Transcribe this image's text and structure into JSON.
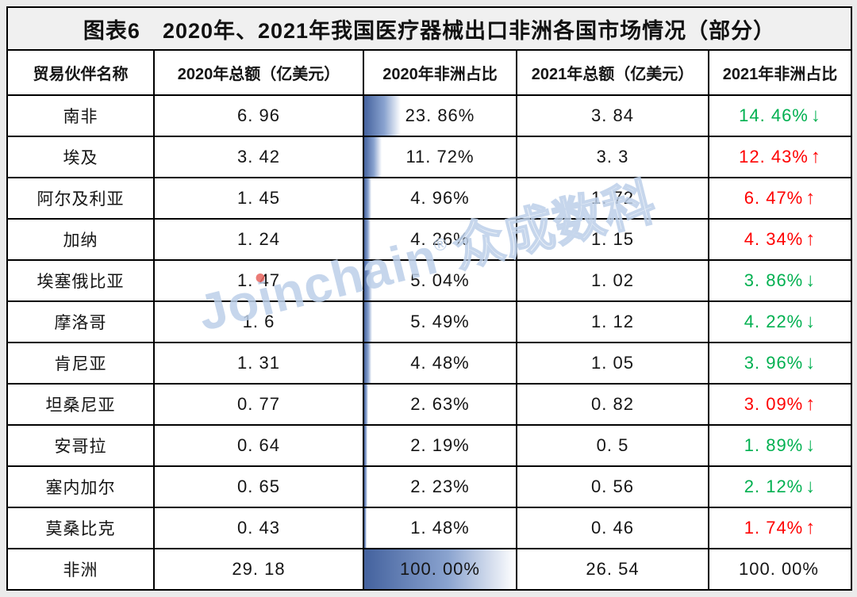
{
  "chart_data": {
    "type": "table",
    "title": "图表6　2020年、2021年我国医疗器械出口非洲各国市场情况（部分）",
    "columns": [
      "贸易伙伴名称",
      "2020年总额（亿美元）",
      "2020年非洲占比",
      "2021年总额（亿美元）",
      "2021年非洲占比"
    ],
    "layout_hints": {
      "share_2020_databar": "gradient blue bar, width proportional to percent of 100%",
      "trend_up_color": "red",
      "trend_down_color": "green"
    },
    "rows": [
      {
        "name": "南非",
        "total_2020": "6. 96",
        "share_2020": "23. 86%",
        "share_2020_value": 23.86,
        "total_2021": "3. 84",
        "share_2021": "14. 46%",
        "arrow": "↓",
        "trend": "down"
      },
      {
        "name": "埃及",
        "total_2020": "3. 42",
        "share_2020": "11. 72%",
        "share_2020_value": 11.72,
        "total_2021": "3. 3",
        "share_2021": "12. 43%",
        "arrow": "↑",
        "trend": "up"
      },
      {
        "name": "阿尔及利亚",
        "total_2020": "1. 45",
        "share_2020": "4. 96%",
        "share_2020_value": 4.96,
        "total_2021": "1. 72",
        "share_2021": "6. 47%",
        "arrow": "↑",
        "trend": "up"
      },
      {
        "name": "加纳",
        "total_2020": "1. 24",
        "share_2020": "4. 26%",
        "share_2020_value": 4.26,
        "total_2021": "1. 15",
        "share_2021": "4. 34%",
        "arrow": "↑",
        "trend": "up"
      },
      {
        "name": "埃塞俄比亚",
        "total_2020": "1. 47",
        "share_2020": "5. 04%",
        "share_2020_value": 5.04,
        "total_2021": "1. 02",
        "share_2021": "3. 86%",
        "arrow": "↓",
        "trend": "down"
      },
      {
        "name": "摩洛哥",
        "total_2020": "1. 6",
        "share_2020": "5. 49%",
        "share_2020_value": 5.49,
        "total_2021": "1. 12",
        "share_2021": "4. 22%",
        "arrow": "↓",
        "trend": "down"
      },
      {
        "name": "肯尼亚",
        "total_2020": "1. 31",
        "share_2020": "4. 48%",
        "share_2020_value": 4.48,
        "total_2021": "1. 05",
        "share_2021": "3. 96%",
        "arrow": "↓",
        "trend": "down"
      },
      {
        "name": "坦桑尼亚",
        "total_2020": "0. 77",
        "share_2020": "2. 63%",
        "share_2020_value": 2.63,
        "total_2021": "0. 82",
        "share_2021": "3. 09%",
        "arrow": "↑",
        "trend": "up"
      },
      {
        "name": "安哥拉",
        "total_2020": "0. 64",
        "share_2020": "2. 19%",
        "share_2020_value": 2.19,
        "total_2021": "0. 5",
        "share_2021": "1. 89%",
        "arrow": "↓",
        "trend": "down"
      },
      {
        "name": "塞内加尔",
        "total_2020": "0. 65",
        "share_2020": "2. 23%",
        "share_2020_value": 2.23,
        "total_2021": "0. 56",
        "share_2021": "2. 12%",
        "arrow": "↓",
        "trend": "down"
      },
      {
        "name": "莫桑比克",
        "total_2020": "0. 43",
        "share_2020": "1. 48%",
        "share_2020_value": 1.48,
        "total_2021": "0. 46",
        "share_2021": "1. 74%",
        "arrow": "↑",
        "trend": "up"
      },
      {
        "name": "非洲",
        "total_2020": "29. 18",
        "share_2020": "100. 00%",
        "share_2020_value": 100,
        "total_2021": "26. 54",
        "share_2021": "100. 00%",
        "arrow": "",
        "trend": ""
      }
    ]
  },
  "watermark": {
    "jo": "Jo",
    "i": "i",
    "nchain": "nchain",
    "reg": "®",
    "cn": "众成数科"
  },
  "colors": {
    "page_bg": "#ebebeb",
    "cell_bg": "#ffffff",
    "title_bg": "#f0f0f0",
    "border": "#000000",
    "text": "#151515",
    "trend_up": "#fe0000",
    "trend_down": "#00b050",
    "bar_dark": "#44629e",
    "bar_mid": "#8aa3cf",
    "watermark": "#bdd0e9",
    "watermark_dot": "#e8655f"
  }
}
